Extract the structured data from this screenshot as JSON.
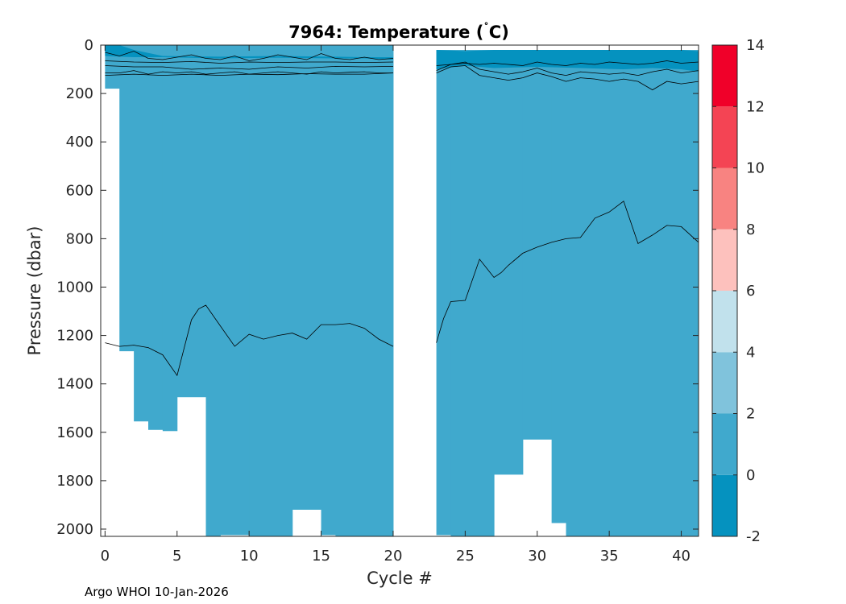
{
  "footer": "Argo WHOI 10-Jan-2026",
  "chart_data": {
    "type": "heatmap",
    "title_main": "7964:  Temperature (",
    "title_degree": "˚",
    "title_unit": "C)",
    "xlabel": "Cycle #",
    "ylabel": "Pressure (dbar)",
    "xlim": [
      -0.3,
      41.2
    ],
    "ylim": [
      0,
      2030
    ],
    "y_reversed": true,
    "xticks": [
      0,
      5,
      10,
      15,
      20,
      25,
      30,
      35,
      40
    ],
    "yticks": [
      0,
      200,
      400,
      600,
      800,
      1000,
      1200,
      1400,
      1600,
      1800,
      2000
    ],
    "colorbar": {
      "range": [
        -2,
        14
      ],
      "ticks": [
        -2,
        0,
        2,
        4,
        6,
        8,
        10,
        12,
        14
      ],
      "bins": [
        {
          "from": -2,
          "to": 0,
          "color": "#0592bf"
        },
        {
          "from": 0,
          "to": 2,
          "color": "#40a9cd"
        },
        {
          "from": 2,
          "to": 4,
          "color": "#80c3dc"
        },
        {
          "from": 4,
          "to": 6,
          "color": "#c1e1ec"
        },
        {
          "from": 6,
          "to": 8,
          "color": "#fdc1bd"
        },
        {
          "from": 8,
          "to": 10,
          "color": "#f88381"
        },
        {
          "from": 10,
          "to": 12,
          "color": "#f44454"
        },
        {
          "from": 12,
          "to": 14,
          "color": "#f00029"
        }
      ]
    },
    "field_color": "#40a9cd",
    "cold_color": "#0592bf",
    "data_gap": [
      20,
      23
    ],
    "profile_bottoms": [
      {
        "x0": 0,
        "x1": 1,
        "p": 180
      },
      {
        "x0": 1,
        "x1": 2,
        "p": 1265
      },
      {
        "x0": 2,
        "x1": 3,
        "p": 1555
      },
      {
        "x0": 3,
        "x1": 4,
        "p": 1590
      },
      {
        "x0": 4,
        "x1": 5,
        "p": 1595
      },
      {
        "x0": 5,
        "x1": 7,
        "p": 1455
      },
      {
        "x0": 7,
        "x1": 8,
        "p": 2030
      },
      {
        "x0": 8,
        "x1": 10,
        "p": 2025
      },
      {
        "x0": 10,
        "x1": 13,
        "p": 2030
      },
      {
        "x0": 13,
        "x1": 15,
        "p": 1920
      },
      {
        "x0": 15,
        "x1": 16,
        "p": 2025
      },
      {
        "x0": 16,
        "x1": 20,
        "p": 2030
      },
      {
        "x0": 23,
        "x1": 24,
        "p": 2025
      },
      {
        "x0": 24,
        "x1": 27,
        "p": 2030
      },
      {
        "x0": 27,
        "x1": 29,
        "p": 1775
      },
      {
        "x0": 29,
        "x1": 31,
        "p": 1630
      },
      {
        "x0": 31,
        "x1": 32,
        "p": 1975
      },
      {
        "x0": 32,
        "x1": 33,
        "p": 2030
      },
      {
        "x0": 33,
        "x1": 41.2,
        "p": 2030
      }
    ],
    "surface_start": [
      {
        "x0": 0,
        "x1": 20,
        "p": 0
      },
      {
        "x0": 23,
        "x1": 41.2,
        "p": 20
      }
    ],
    "cold_layers": [
      {
        "x": [
          0,
          1,
          2,
          4,
          8,
          12,
          16,
          18,
          20
        ],
        "top": [
          0,
          0,
          20,
          45,
          48,
          45,
          48,
          50,
          50
        ],
        "bottom": [
          45,
          48,
          50,
          50,
          55,
          52,
          55,
          55,
          60
        ]
      },
      {
        "x": [
          23,
          25,
          27,
          30,
          33,
          36,
          38,
          40,
          41.2
        ],
        "top": [
          20,
          25,
          20,
          20,
          20,
          20,
          20,
          20,
          25
        ],
        "bottom": [
          100,
          85,
          95,
          90,
          95,
          100,
          95,
          100,
          110
        ]
      }
    ],
    "contours": [
      {
        "level": 2,
        "x": [
          0,
          1,
          2,
          3,
          4,
          5,
          6,
          7,
          8,
          9,
          10,
          11,
          12,
          13,
          14,
          15,
          16,
          17,
          18,
          19,
          20
        ],
        "p": [
          30,
          45,
          25,
          55,
          60,
          50,
          40,
          55,
          60,
          45,
          65,
          55,
          40,
          50,
          60,
          35,
          55,
          60,
          50,
          60,
          55
        ]
      },
      {
        "level": 1.5,
        "x": [
          0,
          2,
          4,
          6,
          8,
          10,
          12,
          14,
          16,
          18,
          20
        ],
        "p": [
          65,
          70,
          72,
          68,
          75,
          70,
          72,
          70,
          70,
          72,
          70
        ]
      },
      {
        "level": 1.2,
        "x": [
          0,
          2,
          4,
          6,
          8,
          10,
          12,
          14,
          16,
          18,
          20
        ],
        "p": [
          85,
          90,
          90,
          100,
          95,
          100,
          90,
          95,
          88,
          90,
          88
        ]
      },
      {
        "level": 1.1,
        "x": [
          0,
          1,
          2,
          3,
          4,
          5,
          6,
          7,
          8,
          9,
          10,
          11,
          12,
          13,
          14,
          15,
          16,
          17,
          18,
          19,
          20
        ],
        "p": [
          115,
          115,
          105,
          120,
          110,
          115,
          110,
          120,
          115,
          110,
          120,
          115,
          110,
          115,
          120,
          110,
          115,
          112,
          110,
          115,
          115
        ]
      },
      {
        "level": 1.0,
        "x": [
          0,
          2,
          4,
          6,
          8,
          10,
          12,
          14,
          16,
          18,
          20
        ],
        "p": [
          125,
          120,
          125,
          120,
          125,
          120,
          122,
          118,
          120,
          120,
          115
        ]
      },
      {
        "level": 1.5,
        "x": [
          23,
          24,
          25,
          26,
          27,
          28,
          29,
          30,
          31,
          32,
          33,
          34,
          35,
          36,
          37,
          38,
          39,
          40,
          41.2
        ],
        "p": [
          85,
          80,
          75,
          80,
          75,
          80,
          85,
          70,
          80,
          85,
          75,
          80,
          70,
          75,
          80,
          75,
          65,
          75,
          70
        ]
      },
      {
        "level": 1.2,
        "x": [
          23,
          24,
          25,
          26,
          27,
          28,
          29,
          30,
          31,
          32,
          33,
          34,
          35,
          36,
          37,
          38,
          39,
          40,
          41.2
        ],
        "p": [
          105,
          80,
          70,
          100,
          110,
          120,
          110,
          95,
          115,
          125,
          110,
          115,
          120,
          115,
          125,
          110,
          100,
          115,
          105
        ]
      },
      {
        "level": 1.1,
        "x": [
          23,
          24,
          25,
          26,
          27,
          28,
          29,
          30,
          31,
          32,
          33,
          34,
          35,
          36,
          37,
          38,
          39,
          40,
          41.2
        ],
        "p": [
          115,
          90,
          85,
          125,
          135,
          145,
          135,
          115,
          130,
          150,
          135,
          140,
          150,
          140,
          150,
          185,
          150,
          160,
          150
        ]
      },
      {
        "level": 0.5,
        "x": [
          0,
          1,
          2,
          3,
          4,
          5,
          5.5,
          6,
          6.5,
          7,
          8,
          9,
          10,
          11,
          12,
          13,
          14,
          15,
          16,
          17,
          18,
          19,
          20
        ],
        "p": [
          1230,
          1245,
          1240,
          1250,
          1280,
          1365,
          1250,
          1135,
          1090,
          1075,
          1160,
          1245,
          1195,
          1215,
          1200,
          1190,
          1215,
          1155,
          1155,
          1150,
          1170,
          1215,
          1245
        ]
      },
      {
        "level": 0.5,
        "x": [
          23,
          23.5,
          24,
          25,
          25.5,
          26,
          27,
          27.5,
          28,
          29,
          30,
          31,
          32,
          33,
          34,
          35,
          36,
          37,
          38,
          39,
          40,
          41.2
        ],
        "p": [
          1230,
          1130,
          1060,
          1055,
          970,
          885,
          960,
          940,
          910,
          860,
          835,
          815,
          800,
          795,
          715,
          690,
          645,
          820,
          785,
          745,
          750,
          815
        ]
      }
    ]
  }
}
